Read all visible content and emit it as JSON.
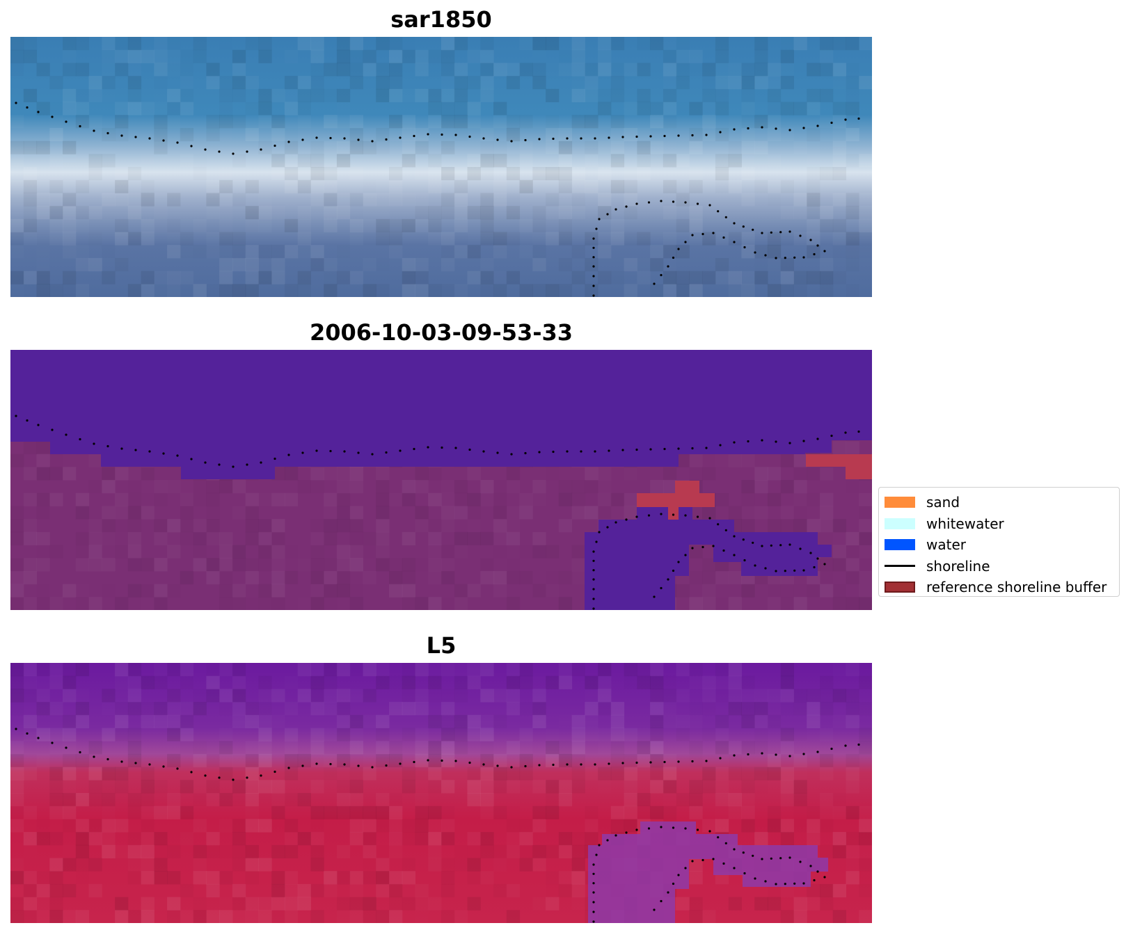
{
  "panels": [
    {
      "title": "sar1850",
      "kind": "rgb"
    },
    {
      "title": "2006-10-03-09-53-33",
      "kind": "classified"
    },
    {
      "title": "L5",
      "kind": "index"
    }
  ],
  "legend": {
    "items": [
      {
        "label": "sand",
        "color": "#ff8c3a",
        "kind": "patch"
      },
      {
        "label": "whitewater",
        "color": "#ccffff",
        "kind": "patch"
      },
      {
        "label": "water",
        "color": "#0055ff",
        "kind": "patch"
      },
      {
        "label": "shoreline",
        "color": "#000000",
        "kind": "line"
      },
      {
        "label": "reference shoreline buffer",
        "color": "#a23034",
        "kind": "patch"
      }
    ]
  },
  "colors": {
    "rgb_sea": "#3a7fb2",
    "rgb_surf": "#dce6ef",
    "rgb_land": "#5672a0",
    "class_water": "#54229a",
    "class_land": "#7a2f74",
    "class_buffer": "#b83a50",
    "index_water": "#6a1a9e",
    "index_land": "#bf1f48",
    "shoreline_dots": "#000000"
  }
}
